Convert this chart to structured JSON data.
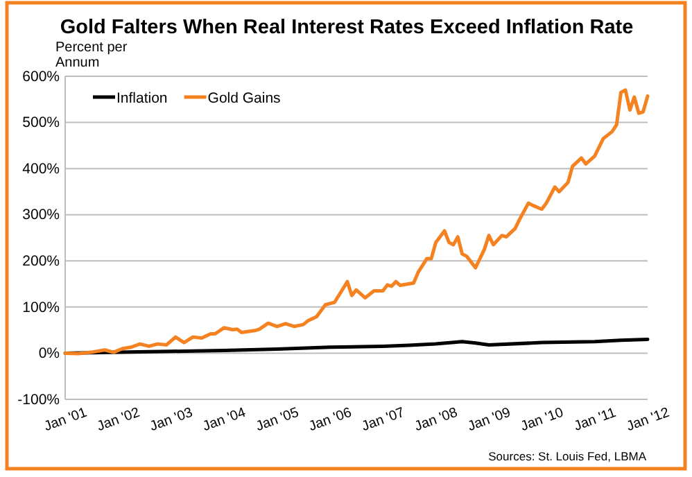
{
  "chart_data": {
    "type": "line",
    "title": "Gold Falters When Real Interest Rates Exceed Inflation Rate",
    "ylabel": "Percent per Annum",
    "annotations": [
      "Sources: St. Louis Fed, LBMA"
    ],
    "series": [
      {
        "name": "Inflation",
        "color": "#000000",
        "x": [
          "2001-01",
          "2002-01",
          "2003-01",
          "2004-01",
          "2005-01",
          "2006-01",
          "2007-01",
          "2007-07",
          "2008-01",
          "2008-07",
          "2008-10",
          "2009-01",
          "2010-01",
          "2011-01",
          "2011-07",
          "2012-01"
        ],
        "values": [
          0,
          2,
          4,
          6,
          9,
          13,
          15,
          17,
          20,
          25,
          22,
          18,
          23,
          25,
          28,
          30
        ]
      },
      {
        "name": "Gold Gains",
        "color": "#f58220",
        "x": [
          "2001-01",
          "2001-04",
          "2001-07",
          "2001-10",
          "2001-12",
          "2002-02",
          "2002-04",
          "2002-06",
          "2002-08",
          "2002-10",
          "2002-12",
          "2003-02",
          "2003-04",
          "2003-06",
          "2003-08",
          "2003-10",
          "2003-11",
          "2004-01",
          "2004-03",
          "2004-04",
          "2004-05",
          "2004-08",
          "2004-09",
          "2004-11",
          "2005-01",
          "2005-03",
          "2005-05",
          "2005-07",
          "2005-08",
          "2005-10",
          "2005-12",
          "2006-02",
          "2006-05",
          "2006-06",
          "2006-07",
          "2006-09",
          "2006-11",
          "2007-01",
          "2007-02",
          "2007-03",
          "2007-04",
          "2007-05",
          "2007-08",
          "2007-09",
          "2007-11",
          "2007-12",
          "2008-01",
          "2008-03",
          "2008-04",
          "2008-05",
          "2008-06",
          "2008-07",
          "2008-08",
          "2008-10",
          "2008-12",
          "2009-01",
          "2009-02",
          "2009-04",
          "2009-05",
          "2009-07",
          "2009-08",
          "2009-10",
          "2009-11",
          "2010-01",
          "2010-02",
          "2010-04",
          "2010-05",
          "2010-07",
          "2010-08",
          "2010-10",
          "2010-11",
          "2011-01",
          "2011-03",
          "2011-05",
          "2011-06",
          "2011-07",
          "2011-08",
          "2011-09",
          "2011-10",
          "2011-11",
          "2011-12",
          "2012-01"
        ],
        "values": [
          0,
          -1,
          2,
          7,
          2,
          10,
          13,
          20,
          15,
          20,
          18,
          35,
          23,
          35,
          33,
          42,
          42,
          55,
          51,
          52,
          45,
          49,
          52,
          65,
          58,
          64,
          58,
          62,
          70,
          79,
          105,
          110,
          155,
          125,
          137,
          120,
          135,
          135,
          148,
          145,
          155,
          147,
          152,
          175,
          205,
          205,
          240,
          265,
          240,
          235,
          252,
          215,
          210,
          185,
          225,
          255,
          235,
          255,
          252,
          270,
          290,
          325,
          320,
          312,
          325,
          360,
          350,
          370,
          405,
          423,
          410,
          427,
          465,
          480,
          495,
          565,
          570,
          527,
          555,
          520,
          523,
          557
        ]
      }
    ],
    "xlim": [
      "2001-01",
      "2012-01"
    ],
    "xticks": [
      {
        "value": "2001-01",
        "label": "Jan '01"
      },
      {
        "value": "2002-01",
        "label": "Jan '02"
      },
      {
        "value": "2003-01",
        "label": "Jan '03"
      },
      {
        "value": "2004-01",
        "label": "Jan '04"
      },
      {
        "value": "2005-01",
        "label": "Jan '05"
      },
      {
        "value": "2006-01",
        "label": "Jan '06"
      },
      {
        "value": "2007-01",
        "label": "Jan '07"
      },
      {
        "value": "2008-01",
        "label": "Jan '08"
      },
      {
        "value": "2009-01",
        "label": "Jan '09"
      },
      {
        "value": "2010-01",
        "label": "Jan '10"
      },
      {
        "value": "2011-01",
        "label": "Jan '11"
      },
      {
        "value": "2012-01",
        "label": "Jan '12"
      }
    ],
    "ylim": [
      -100,
      600
    ],
    "yticks": [
      {
        "value": -100,
        "label": "-100%"
      },
      {
        "value": 0,
        "label": "0%"
      },
      {
        "value": 100,
        "label": "100%"
      },
      {
        "value": 200,
        "label": "200%"
      },
      {
        "value": 300,
        "label": "300%"
      },
      {
        "value": 400,
        "label": "400%"
      },
      {
        "value": 500,
        "label": "500%"
      },
      {
        "value": 600,
        "label": "600%"
      }
    ],
    "grid": "y",
    "legend": "top left",
    "marker": "none",
    "line_style": "solid"
  }
}
